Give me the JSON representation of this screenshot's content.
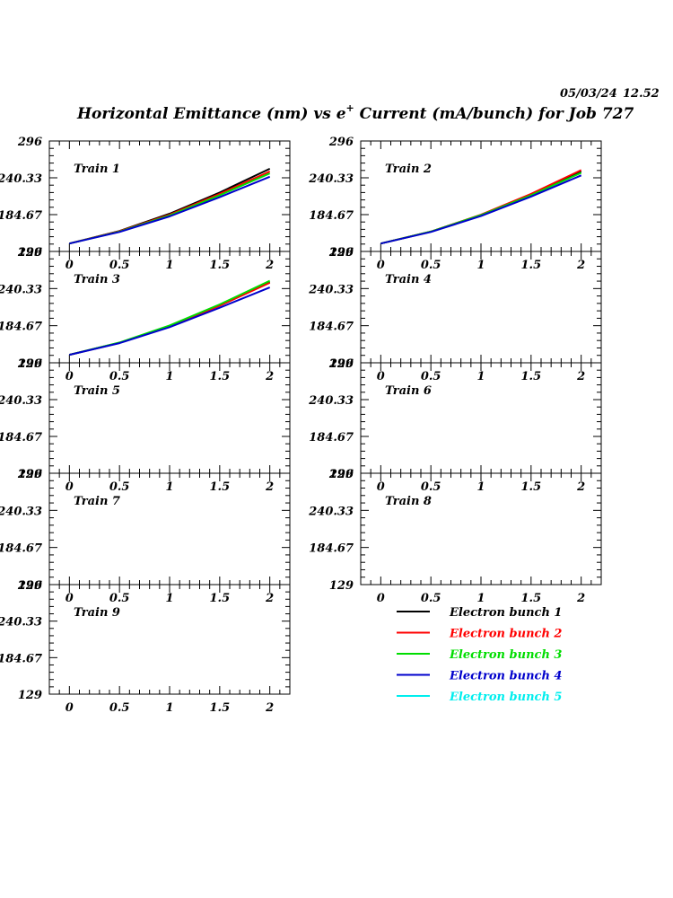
{
  "header": {
    "date": "05/03/24",
    "time": "12.52",
    "title_main": "Horizontal Emittance (nm) vs e",
    "title_sup": "+",
    "title_rest": " Current (mA/bunch) for Job 727"
  },
  "chart_data": {
    "type": "line",
    "title": "Horizontal Emittance (nm) vs e+ Current (mA/bunch) for Job 727",
    "xlim": [
      -0.2,
      2.2
    ],
    "ylim": [
      129,
      296
    ],
    "x_ticks": [
      "0",
      "0.5",
      "1",
      "1.5",
      "2"
    ],
    "y_ticks": [
      "129",
      "184.67",
      "240.33",
      "296"
    ],
    "grid": false,
    "legend_position": "bottom-right",
    "series_styles": [
      {
        "name": "Electron bunch 1",
        "color": "#000000"
      },
      {
        "name": "Electron bunch 2",
        "color": "#ff0000"
      },
      {
        "name": "Electron bunch 3",
        "color": "#00dd00"
      },
      {
        "name": "Electron bunch 4",
        "color": "#0000cc"
      },
      {
        "name": "Electron bunch 5",
        "color": "#00eeee"
      }
    ],
    "panels": [
      {
        "label": "Train 1",
        "x": [
          0,
          0.5,
          1,
          1.5,
          2
        ],
        "series": [
          {
            "name": "Electron bunch 1",
            "values": [
              141,
              160,
              186,
              218,
              254
            ]
          },
          {
            "name": "Electron bunch 2",
            "values": [
              141,
              159.5,
              184.5,
              216,
              250
            ]
          },
          {
            "name": "Electron bunch 3",
            "values": [
              141,
              159,
              183.5,
              214,
              247
            ]
          },
          {
            "name": "Electron bunch 4",
            "values": [
              141,
              158.5,
              182,
              211,
              242
            ]
          },
          {
            "name": "Electron bunch 5",
            "values": []
          }
        ]
      },
      {
        "label": "Train 2",
        "x": [
          0,
          0.5,
          1,
          1.5,
          2
        ],
        "series": [
          {
            "name": "Electron bunch 1",
            "values": [
              141,
              159,
              184,
              215,
              250
            ]
          },
          {
            "name": "Electron bunch 2",
            "values": [
              141,
              159,
              184.5,
              216,
              252
            ]
          },
          {
            "name": "Electron bunch 3",
            "values": [
              141,
              159,
              184,
              214,
              248
            ]
          },
          {
            "name": "Electron bunch 4",
            "values": [
              141,
              158.5,
              182.5,
              212,
              244
            ]
          },
          {
            "name": "Electron bunch 5",
            "values": []
          }
        ]
      },
      {
        "label": "Train 3",
        "x": [
          0,
          0.5,
          1,
          1.5,
          2
        ],
        "series": [
          {
            "name": "Electron bunch 1",
            "values": [
              141,
              159,
              184,
              215,
              250
            ]
          },
          {
            "name": "Electron bunch 2",
            "values": [
              141,
              159,
              184,
              214.5,
              249
            ]
          },
          {
            "name": "Electron bunch 3",
            "values": [
              141,
              159.5,
              185,
              216.5,
              252
            ]
          },
          {
            "name": "Electron bunch 4",
            "values": [
              141,
              158.5,
              182.5,
              211.5,
              242
            ]
          },
          {
            "name": "Electron bunch 5",
            "values": []
          }
        ]
      },
      {
        "label": "Train 4",
        "x": [],
        "series": []
      },
      {
        "label": "Train 5",
        "x": [],
        "series": []
      },
      {
        "label": "Train 6",
        "x": [],
        "series": []
      },
      {
        "label": "Train 7",
        "x": [],
        "series": []
      },
      {
        "label": "Train 8",
        "x": [],
        "series": []
      },
      {
        "label": "Train 9",
        "x": [],
        "series": []
      }
    ]
  }
}
